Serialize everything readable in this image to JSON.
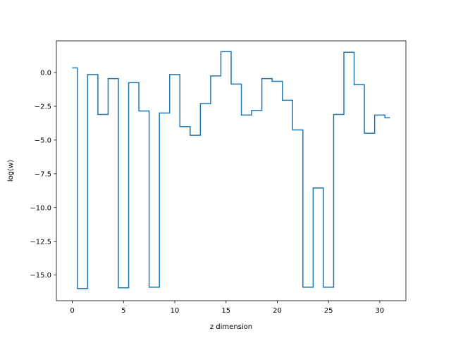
{
  "chart_data": {
    "type": "line",
    "drawstyle": "steps-mid",
    "title": "",
    "xlabel": "z dimension",
    "ylabel": "log(w)",
    "xlim": [
      -1.55,
      32.55
    ],
    "ylim": [
      -16.9,
      2.35
    ],
    "xticks": [
      0,
      5,
      10,
      15,
      20,
      25,
      30
    ],
    "xtick_labels": [
      "0",
      "5",
      "10",
      "15",
      "20",
      "25",
      "30"
    ],
    "yticks": [
      0.0,
      -2.5,
      -5.0,
      -7.5,
      -10.0,
      -12.5,
      -15.0
    ],
    "ytick_labels": [
      "0.0",
      "−2.5",
      "−5.0",
      "−7.5",
      "−10.0",
      "−12.5",
      "−15.0"
    ],
    "grid": false,
    "legend": "none",
    "series": [
      {
        "color": "#1f77b4",
        "x": [
          0,
          1,
          2,
          3,
          4,
          5,
          6,
          7,
          8,
          9,
          10,
          11,
          12,
          13,
          14,
          15,
          16,
          17,
          18,
          19,
          20,
          21,
          22,
          23,
          24,
          25,
          26,
          27,
          28,
          29,
          30,
          31
        ],
        "values": [
          0.35,
          -16.0,
          -0.15,
          -3.1,
          -0.45,
          -15.95,
          -0.75,
          -2.85,
          -15.9,
          -3.0,
          -0.15,
          -4.0,
          -4.65,
          -2.3,
          -0.25,
          1.55,
          -0.85,
          -3.15,
          -2.8,
          -0.45,
          -0.65,
          -2.05,
          -4.25,
          -15.9,
          -8.55,
          -15.9,
          -3.1,
          1.5,
          -0.9,
          -4.5,
          -3.15,
          -3.35
        ]
      }
    ]
  }
}
